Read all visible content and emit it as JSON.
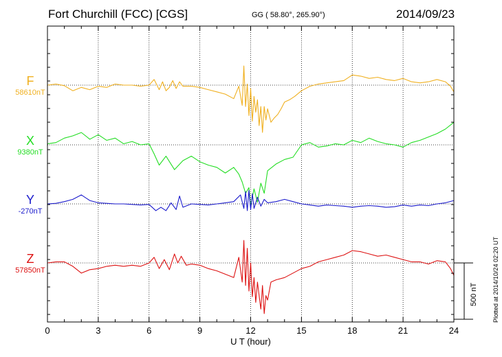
{
  "header": {
    "station": "Fort Churchill (FCC)  [CGS]",
    "coordinates": "GG ( 58.80°, 265.90°)",
    "date": "2014/09/23",
    "plotted_note": "Plotted at 2014/10/24 02:20 UT"
  },
  "chart_data": {
    "type": "line",
    "title": "Fort Churchill (FCC)  [CGS]",
    "xlabel": "U T (hour)",
    "xlim": [
      0,
      24
    ],
    "xticks": [
      0,
      3,
      6,
      9,
      12,
      15,
      18,
      21,
      24
    ],
    "xtick_labels": [
      "0",
      "3",
      "6",
      "9",
      "12",
      "15",
      "18",
      "21",
      "24"
    ],
    "grid": true,
    "units": "nT",
    "scale_bar": {
      "value": 500,
      "label": "500 nT"
    },
    "series": [
      {
        "name": "F",
        "baseline_label": "58610nT",
        "baseline": 58610,
        "color": "#f0b020",
        "x": [
          0,
          0.5,
          1,
          1.5,
          2,
          2.5,
          3,
          3.5,
          4,
          4.5,
          5,
          5.5,
          6,
          6.3,
          6.6,
          6.8,
          7,
          7.2,
          7.4,
          7.6,
          7.8,
          8,
          8.5,
          9,
          9.5,
          10,
          10.5,
          11,
          11.3,
          11.5,
          11.6,
          11.7,
          11.8,
          11.9,
          12,
          12.1,
          12.2,
          12.3,
          12.4,
          12.5,
          12.6,
          12.7,
          12.8,
          12.9,
          13,
          13.2,
          13.4,
          13.6,
          13.8,
          14,
          14.3,
          14.6,
          15,
          15.5,
          16,
          16.5,
          17,
          17.5,
          18,
          18.5,
          19,
          19.5,
          20,
          20.5,
          21,
          21.5,
          22,
          22.5,
          23,
          23.5,
          23.8,
          24
        ],
        "values": [
          58610,
          58620,
          58605,
          58560,
          58590,
          58570,
          58600,
          58590,
          58620,
          58610,
          58610,
          58600,
          58610,
          58660,
          58570,
          58640,
          58560,
          58590,
          58650,
          58580,
          58640,
          58600,
          58600,
          58590,
          58570,
          58550,
          58530,
          58490,
          58600,
          58430,
          58780,
          58420,
          58620,
          58340,
          58580,
          58290,
          58510,
          58370,
          58480,
          58250,
          58420,
          58190,
          58420,
          58300,
          58400,
          58280,
          58320,
          58350,
          58400,
          58460,
          58480,
          58510,
          58560,
          58600,
          58620,
          58630,
          58640,
          58650,
          58700,
          58690,
          58670,
          58680,
          58660,
          58650,
          58670,
          58640,
          58630,
          58640,
          58660,
          58640,
          58600,
          58550
        ]
      },
      {
        "name": "X",
        "baseline_label": "9380nT",
        "baseline": 9380,
        "color": "#22dd22",
        "x": [
          0,
          0.5,
          1,
          1.5,
          2,
          2.5,
          3,
          3.5,
          4,
          4.5,
          5,
          5.5,
          6,
          6.3,
          6.6,
          7,
          7.5,
          8,
          8.5,
          9,
          9.5,
          10,
          10.5,
          11,
          11.3,
          11.5,
          11.7,
          11.9,
          12,
          12.2,
          12.4,
          12.6,
          12.8,
          13,
          13.5,
          14,
          14.5,
          15,
          15.5,
          16,
          16.5,
          17,
          17.5,
          18,
          18.5,
          19,
          19.5,
          20,
          20.5,
          21,
          21.5,
          22,
          22.5,
          23,
          23.5,
          24
        ],
        "values": [
          9390,
          9400,
          9440,
          9460,
          9490,
          9430,
          9470,
          9420,
          9440,
          9390,
          9410,
          9380,
          9390,
          9300,
          9200,
          9280,
          9160,
          9240,
          9280,
          9230,
          9200,
          9180,
          9130,
          9180,
          9120,
          9050,
          8950,
          9000,
          8840,
          8990,
          8870,
          9040,
          8950,
          9150,
          9210,
          9250,
          9270,
          9380,
          9400,
          9360,
          9370,
          9390,
          9380,
          9420,
          9400,
          9440,
          9410,
          9390,
          9380,
          9360,
          9400,
          9420,
          9450,
          9480,
          9520,
          9580
        ]
      },
      {
        "name": "Y",
        "baseline_label": "-270nT",
        "baseline": -270,
        "color": "#1a1acc",
        "x": [
          0,
          0.5,
          1,
          1.5,
          2,
          2.5,
          3,
          3.5,
          4,
          4.5,
          5,
          5.5,
          6,
          6.4,
          6.7,
          7,
          7.3,
          7.6,
          7.8,
          8,
          8.5,
          9,
          9.5,
          10,
          10.5,
          11,
          11.4,
          11.6,
          11.7,
          11.8,
          11.9,
          12,
          12.1,
          12.2,
          12.4,
          12.6,
          12.8,
          13,
          13.5,
          14,
          14.5,
          15,
          15.5,
          16,
          16.5,
          17,
          17.5,
          18,
          18.5,
          19,
          19.5,
          20,
          20.5,
          21,
          21.5,
          22,
          22.5,
          23,
          23.5,
          24
        ],
        "values": [
          -270,
          -265,
          -250,
          -230,
          -190,
          -240,
          -260,
          -265,
          -270,
          -270,
          -275,
          -280,
          -275,
          -330,
          -300,
          -330,
          -260,
          -320,
          -200,
          -300,
          -270,
          -275,
          -280,
          -270,
          -260,
          -250,
          -190,
          -310,
          -160,
          -330,
          -150,
          -320,
          -180,
          -310,
          -210,
          -290,
          -230,
          -260,
          -250,
          -230,
          -250,
          -270,
          -280,
          -290,
          -280,
          -285,
          -290,
          -300,
          -290,
          -285,
          -290,
          -300,
          -295,
          -280,
          -290,
          -280,
          -285,
          -270,
          -260,
          -240
        ]
      },
      {
        "name": "Z",
        "baseline_label": "57850nT",
        "baseline": 57850,
        "color": "#dd1111",
        "x": [
          0,
          0.5,
          1,
          1.5,
          2,
          2.5,
          3,
          3.5,
          4,
          4.5,
          5,
          5.5,
          6,
          6.3,
          6.6,
          6.9,
          7.2,
          7.5,
          7.7,
          7.9,
          8.2,
          8.5,
          9,
          9.5,
          10,
          10.5,
          11,
          11.3,
          11.5,
          11.6,
          11.7,
          11.8,
          11.9,
          12,
          12.1,
          12.2,
          12.3,
          12.4,
          12.5,
          12.6,
          12.7,
          12.8,
          12.9,
          13,
          13.2,
          13.5,
          14,
          14.5,
          15,
          15.5,
          16,
          16.5,
          17,
          17.5,
          18,
          18.5,
          19,
          19.5,
          20,
          20.5,
          21,
          21.5,
          22,
          22.5,
          23,
          23.5,
          23.8,
          24
        ],
        "values": [
          57850,
          57860,
          57860,
          57820,
          57760,
          57790,
          57800,
          57820,
          57830,
          57820,
          57830,
          57820,
          57850,
          57900,
          57800,
          57880,
          57790,
          57930,
          57850,
          57910,
          57830,
          57840,
          57830,
          57800,
          57780,
          57750,
          57720,
          57900,
          57680,
          58050,
          57650,
          57980,
          57600,
          57850,
          57550,
          57720,
          57500,
          57680,
          57560,
          57440,
          57650,
          57400,
          57560,
          57520,
          57680,
          57700,
          57720,
          57760,
          57800,
          57820,
          57860,
          57880,
          57900,
          57920,
          57960,
          57950,
          57930,
          57910,
          57920,
          57900,
          57880,
          57860,
          57860,
          57840,
          57870,
          57860,
          57800,
          57740
        ]
      }
    ]
  }
}
